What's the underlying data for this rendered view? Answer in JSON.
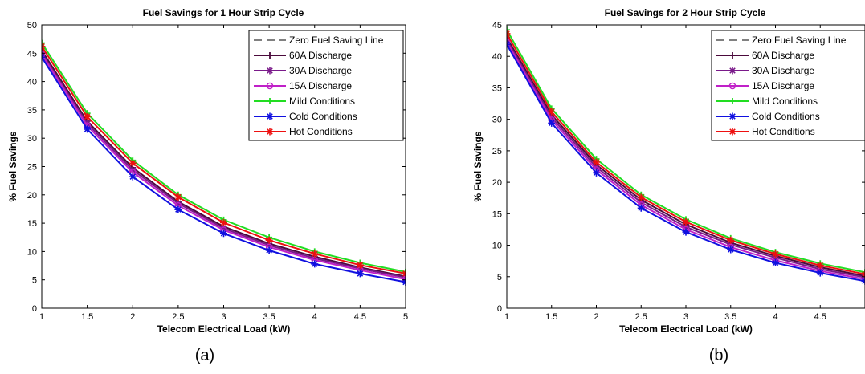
{
  "chart_data": [
    {
      "type": "line",
      "title": "Fuel Savings for 1 Hour Strip Cycle",
      "xlabel": "Telecom Electrical Load (kW)",
      "ylabel": "% Fuel Savings",
      "xlim": [
        1,
        5
      ],
      "ylim": [
        0,
        50
      ],
      "xticks": [
        "1",
        "1.5",
        "2",
        "2.5",
        "3",
        "3.5",
        "4",
        "4.5",
        "5"
      ],
      "yticks": [
        "0",
        "5",
        "10",
        "15",
        "20",
        "25",
        "30",
        "35",
        "40",
        "45",
        "50"
      ],
      "legend_position": "top-right",
      "grid": false,
      "x": [
        1,
        1.5,
        2,
        2.5,
        3,
        3.5,
        4,
        4.5,
        5
      ],
      "series": [
        {
          "name": "Zero Fuel Saving Line",
          "color": "#000000",
          "marker": "none",
          "dashed": true,
          "values": [
            0,
            0,
            0,
            0,
            0,
            0,
            0,
            0,
            0
          ]
        },
        {
          "name": "60A Discharge",
          "color": "#4b0a3c",
          "marker": "plus",
          "values": [
            45.5,
            33.0,
            24.8,
            18.8,
            14.4,
            11.4,
            9.1,
            7.2,
            5.6
          ]
        },
        {
          "name": "30A Discharge",
          "color": "#7a1a8a",
          "marker": "star",
          "values": [
            45.0,
            32.6,
            24.4,
            18.5,
            14.1,
            11.1,
            8.8,
            7.0,
            5.4
          ]
        },
        {
          "name": "15A Discharge",
          "color": "#c020c8",
          "marker": "circle",
          "values": [
            44.8,
            32.2,
            24.0,
            18.1,
            13.8,
            10.8,
            8.5,
            6.7,
            5.1
          ]
        },
        {
          "name": "Mild Conditions",
          "color": "#22dd22",
          "marker": "plus",
          "values": [
            46.8,
            34.4,
            26.1,
            20.0,
            15.6,
            12.5,
            10.0,
            8.0,
            6.4
          ]
        },
        {
          "name": "Cold Conditions",
          "color": "#1010e0",
          "marker": "star",
          "values": [
            44.3,
            31.6,
            23.2,
            17.4,
            13.2,
            10.2,
            7.8,
            6.1,
            4.6
          ]
        },
        {
          "name": "Hot Conditions",
          "color": "#ee1010",
          "marker": "star",
          "values": [
            46.2,
            33.8,
            25.6,
            19.6,
            15.1,
            12.0,
            9.6,
            7.6,
            6.1
          ]
        }
      ],
      "caption": "(a)"
    },
    {
      "type": "line",
      "title": "Fuel Savings for 2 Hour Strip Cycle",
      "xlabel": "Telecom Electrical Load (kW)",
      "ylabel": "% Fuel Savings",
      "xlim": [
        1,
        5
      ],
      "ylim": [
        0,
        45
      ],
      "xticks": [
        "1",
        "1.5",
        "2",
        "2.5",
        "3",
        "3.5",
        "4",
        "4.5"
      ],
      "yticks": [
        "0",
        "5",
        "10",
        "15",
        "20",
        "25",
        "30",
        "35",
        "40",
        "45"
      ],
      "legend_position": "top-right",
      "grid": false,
      "x": [
        1,
        1.5,
        2,
        2.5,
        3,
        3.5,
        4,
        4.5,
        5
      ],
      "series": [
        {
          "name": "Zero Fuel Saving Line",
          "color": "#000000",
          "marker": "none",
          "dashed": true,
          "values": [
            0,
            0,
            0,
            0,
            0,
            0,
            0,
            0,
            0
          ]
        },
        {
          "name": "60A Discharge",
          "color": "#4b0a3c",
          "marker": "plus",
          "values": [
            43.0,
            30.7,
            22.8,
            17.2,
            13.3,
            10.4,
            8.3,
            6.5,
            5.1
          ]
        },
        {
          "name": "30A Discharge",
          "color": "#7a1a8a",
          "marker": "star",
          "values": [
            42.6,
            30.3,
            22.4,
            16.8,
            12.9,
            10.1,
            8.0,
            6.2,
            4.9
          ]
        },
        {
          "name": "15A Discharge",
          "color": "#c020c8",
          "marker": "circle",
          "values": [
            42.3,
            29.9,
            22.0,
            16.4,
            12.5,
            9.7,
            7.6,
            5.9,
            4.6
          ]
        },
        {
          "name": "Mild Conditions",
          "color": "#22dd22",
          "marker": "plus",
          "values": [
            44.2,
            31.7,
            23.7,
            18.0,
            14.1,
            11.1,
            8.9,
            7.1,
            5.7
          ]
        },
        {
          "name": "Cold Conditions",
          "color": "#1010e0",
          "marker": "star",
          "values": [
            41.9,
            29.4,
            21.5,
            15.9,
            12.1,
            9.3,
            7.2,
            5.6,
            4.3
          ]
        },
        {
          "name": "Hot Conditions",
          "color": "#ee1010",
          "marker": "star",
          "values": [
            43.6,
            31.2,
            23.2,
            17.6,
            13.7,
            10.8,
            8.6,
            6.8,
            5.4
          ]
        }
      ],
      "caption": "(b)"
    }
  ]
}
